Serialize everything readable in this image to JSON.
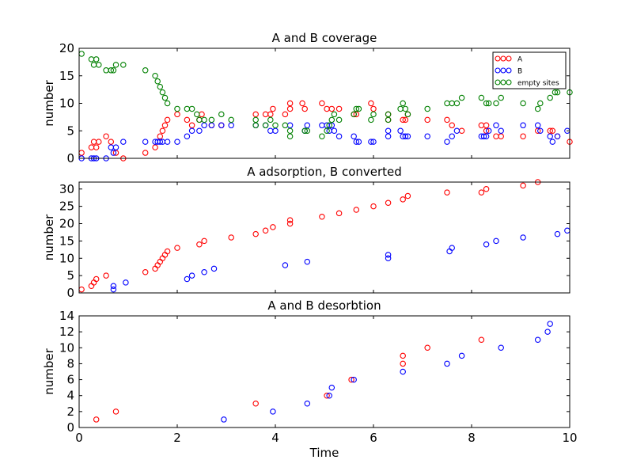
{
  "chart_data": [
    {
      "type": "scatter",
      "title": "A and B coverage",
      "xlabel": "",
      "ylabel": "number",
      "xlim": [
        0,
        10
      ],
      "ylim": [
        0,
        20
      ],
      "xticks": [],
      "yticks": [
        0,
        5,
        10,
        15,
        20
      ],
      "legend": {
        "placement": "top-right"
      },
      "series": [
        {
          "name": "A",
          "color": "#ff0000",
          "points": [
            [
              0.05,
              1
            ],
            [
              0.25,
              2
            ],
            [
              0.3,
              3
            ],
            [
              0.35,
              2
            ],
            [
              0.4,
              3
            ],
            [
              0.55,
              4
            ],
            [
              0.65,
              3
            ],
            [
              0.75,
              1
            ],
            [
              0.9,
              0
            ],
            [
              1.35,
              1
            ],
            [
              1.55,
              2
            ],
            [
              1.65,
              4
            ],
            [
              1.7,
              5
            ],
            [
              1.75,
              6
            ],
            [
              1.8,
              7
            ],
            [
              2.0,
              8
            ],
            [
              2.2,
              7
            ],
            [
              2.3,
              6
            ],
            [
              2.45,
              7
            ],
            [
              2.5,
              8
            ],
            [
              2.7,
              6
            ],
            [
              2.9,
              6
            ],
            [
              3.6,
              8
            ],
            [
              3.8,
              8
            ],
            [
              3.9,
              8
            ],
            [
              3.95,
              9
            ],
            [
              4.2,
              8
            ],
            [
              4.3,
              10
            ],
            [
              4.3,
              9
            ],
            [
              4.55,
              10
            ],
            [
              4.6,
              9
            ],
            [
              4.95,
              10
            ],
            [
              5.05,
              9
            ],
            [
              5.15,
              9
            ],
            [
              5.3,
              9
            ],
            [
              5.6,
              8
            ],
            [
              5.65,
              8
            ],
            [
              5.95,
              10
            ],
            [
              6.0,
              9
            ],
            [
              6.3,
              8
            ],
            [
              6.3,
              7
            ],
            [
              6.6,
              7
            ],
            [
              6.65,
              7
            ],
            [
              6.7,
              8
            ],
            [
              7.1,
              7
            ],
            [
              7.5,
              7
            ],
            [
              7.6,
              6
            ],
            [
              7.8,
              5
            ],
            [
              8.2,
              6
            ],
            [
              8.3,
              5
            ],
            [
              8.3,
              6
            ],
            [
              8.5,
              4
            ],
            [
              8.6,
              4
            ],
            [
              9.05,
              4
            ],
            [
              9.35,
              5
            ],
            [
              9.6,
              5
            ],
            [
              9.65,
              5
            ],
            [
              9.75,
              4
            ],
            [
              10.0,
              3
            ]
          ]
        },
        {
          "name": "B",
          "color": "#0000ff",
          "points": [
            [
              0.05,
              0
            ],
            [
              0.25,
              0
            ],
            [
              0.3,
              0
            ],
            [
              0.35,
              0
            ],
            [
              0.55,
              0
            ],
            [
              0.65,
              2
            ],
            [
              0.7,
              1
            ],
            [
              0.75,
              2
            ],
            [
              0.9,
              3
            ],
            [
              1.35,
              3
            ],
            [
              1.55,
              3
            ],
            [
              1.6,
              3
            ],
            [
              1.65,
              3
            ],
            [
              1.7,
              3
            ],
            [
              1.8,
              3
            ],
            [
              2.0,
              3
            ],
            [
              2.2,
              4
            ],
            [
              2.3,
              5
            ],
            [
              2.45,
              5
            ],
            [
              2.55,
              6
            ],
            [
              2.7,
              6
            ],
            [
              2.9,
              6
            ],
            [
              3.1,
              6
            ],
            [
              3.6,
              6
            ],
            [
              3.8,
              6
            ],
            [
              3.9,
              5
            ],
            [
              4.0,
              5
            ],
            [
              4.3,
              6
            ],
            [
              4.6,
              5
            ],
            [
              4.65,
              6
            ],
            [
              4.95,
              6
            ],
            [
              5.05,
              6
            ],
            [
              5.1,
              5
            ],
            [
              5.15,
              6
            ],
            [
              5.2,
              5
            ],
            [
              5.3,
              4
            ],
            [
              5.6,
              4
            ],
            [
              5.65,
              3
            ],
            [
              5.7,
              3
            ],
            [
              5.95,
              3
            ],
            [
              6.0,
              3
            ],
            [
              6.3,
              5
            ],
            [
              6.3,
              4
            ],
            [
              6.55,
              5
            ],
            [
              6.6,
              4
            ],
            [
              6.65,
              4
            ],
            [
              6.7,
              4
            ],
            [
              7.1,
              4
            ],
            [
              7.5,
              3
            ],
            [
              7.6,
              4
            ],
            [
              7.7,
              5
            ],
            [
              8.2,
              4
            ],
            [
              8.25,
              4
            ],
            [
              8.3,
              4
            ],
            [
              8.35,
              5
            ],
            [
              8.5,
              6
            ],
            [
              8.6,
              5
            ],
            [
              9.05,
              6
            ],
            [
              9.35,
              6
            ],
            [
              9.4,
              5
            ],
            [
              9.6,
              4
            ],
            [
              9.65,
              3
            ],
            [
              9.75,
              4
            ],
            [
              9.95,
              5
            ]
          ]
        },
        {
          "name": "empty sites",
          "color": "#008000",
          "points": [
            [
              0.05,
              19
            ],
            [
              0.25,
              18
            ],
            [
              0.3,
              17
            ],
            [
              0.35,
              18
            ],
            [
              0.4,
              17
            ],
            [
              0.55,
              16
            ],
            [
              0.65,
              16
            ],
            [
              0.7,
              16
            ],
            [
              0.75,
              17
            ],
            [
              0.9,
              17
            ],
            [
              1.35,
              16
            ],
            [
              1.55,
              15
            ],
            [
              1.6,
              14
            ],
            [
              1.65,
              13
            ],
            [
              1.7,
              12
            ],
            [
              1.75,
              11
            ],
            [
              1.8,
              10
            ],
            [
              2.0,
              9
            ],
            [
              2.2,
              9
            ],
            [
              2.3,
              9
            ],
            [
              2.4,
              8
            ],
            [
              2.45,
              7
            ],
            [
              2.55,
              7
            ],
            [
              2.7,
              7
            ],
            [
              2.9,
              8
            ],
            [
              3.1,
              7
            ],
            [
              3.6,
              7
            ],
            [
              3.6,
              6
            ],
            [
              3.8,
              6
            ],
            [
              3.9,
              7
            ],
            [
              4.0,
              6
            ],
            [
              4.2,
              6
            ],
            [
              4.3,
              5
            ],
            [
              4.3,
              4
            ],
            [
              4.6,
              5
            ],
            [
              4.65,
              5
            ],
            [
              4.95,
              4
            ],
            [
              5.05,
              5
            ],
            [
              5.1,
              6
            ],
            [
              5.15,
              7
            ],
            [
              5.2,
              8
            ],
            [
              5.3,
              7
            ],
            [
              5.6,
              8
            ],
            [
              5.65,
              9
            ],
            [
              5.7,
              9
            ],
            [
              5.95,
              7
            ],
            [
              6.0,
              8
            ],
            [
              6.3,
              8
            ],
            [
              6.3,
              7
            ],
            [
              6.55,
              9
            ],
            [
              6.6,
              10
            ],
            [
              6.65,
              9
            ],
            [
              6.7,
              8
            ],
            [
              7.1,
              9
            ],
            [
              7.5,
              10
            ],
            [
              7.6,
              10
            ],
            [
              7.7,
              10
            ],
            [
              7.8,
              11
            ],
            [
              8.2,
              11
            ],
            [
              8.3,
              10
            ],
            [
              8.35,
              10
            ],
            [
              8.5,
              10
            ],
            [
              8.6,
              11
            ],
            [
              9.05,
              10
            ],
            [
              9.35,
              9
            ],
            [
              9.4,
              10
            ],
            [
              9.6,
              11
            ],
            [
              9.7,
              12
            ],
            [
              9.75,
              12
            ],
            [
              10.0,
              12
            ]
          ]
        }
      ]
    },
    {
      "type": "scatter",
      "title": "A adsorption, B converted",
      "xlabel": "",
      "ylabel": "number",
      "xlim": [
        0,
        10
      ],
      "ylim": [
        0,
        32
      ],
      "xticks": [],
      "yticks": [
        0,
        5,
        10,
        15,
        20,
        25,
        30
      ],
      "series": [
        {
          "color": "#ff0000",
          "points": [
            [
              0.05,
              1
            ],
            [
              0.25,
              2
            ],
            [
              0.3,
              3
            ],
            [
              0.35,
              4
            ],
            [
              0.55,
              5
            ],
            [
              1.35,
              6
            ],
            [
              1.55,
              7
            ],
            [
              1.6,
              8
            ],
            [
              1.65,
              9
            ],
            [
              1.7,
              10
            ],
            [
              1.75,
              11
            ],
            [
              1.8,
              12
            ],
            [
              2.0,
              13
            ],
            [
              2.45,
              14
            ],
            [
              2.55,
              15
            ],
            [
              3.1,
              16
            ],
            [
              3.6,
              17
            ],
            [
              3.8,
              18
            ],
            [
              3.95,
              19
            ],
            [
              4.3,
              20
            ],
            [
              4.3,
              21
            ],
            [
              4.95,
              22
            ],
            [
              5.3,
              23
            ],
            [
              5.65,
              24
            ],
            [
              6.0,
              25
            ],
            [
              6.3,
              26
            ],
            [
              6.6,
              27
            ],
            [
              6.7,
              28
            ],
            [
              7.5,
              29
            ],
            [
              8.2,
              29
            ],
            [
              8.3,
              30
            ],
            [
              9.05,
              31
            ],
            [
              9.35,
              32
            ]
          ]
        },
        {
          "color": "#0000ff",
          "points": [
            [
              0.7,
              1
            ],
            [
              0.7,
              2
            ],
            [
              0.95,
              3
            ],
            [
              2.2,
              4
            ],
            [
              2.3,
              5
            ],
            [
              2.55,
              6
            ],
            [
              2.75,
              7
            ],
            [
              4.2,
              8
            ],
            [
              4.65,
              9
            ],
            [
              6.3,
              10
            ],
            [
              6.3,
              11
            ],
            [
              7.55,
              12
            ],
            [
              7.6,
              13
            ],
            [
              8.3,
              14
            ],
            [
              8.5,
              15
            ],
            [
              9.05,
              16
            ],
            [
              9.75,
              17
            ],
            [
              9.95,
              18
            ]
          ]
        }
      ]
    },
    {
      "type": "scatter",
      "title": "A and B desorbtion",
      "xlabel": "Time",
      "ylabel": "number",
      "xlim": [
        0,
        10
      ],
      "ylim": [
        0,
        14
      ],
      "xticks": [
        0,
        2,
        4,
        6,
        8,
        10
      ],
      "yticks": [
        0,
        2,
        4,
        6,
        8,
        10,
        12,
        14
      ],
      "series": [
        {
          "color": "#ff0000",
          "points": [
            [
              0.35,
              1
            ],
            [
              0.75,
              2
            ],
            [
              3.6,
              3
            ],
            [
              5.05,
              4
            ],
            [
              5.55,
              6
            ],
            [
              6.6,
              8
            ],
            [
              6.6,
              9
            ],
            [
              7.1,
              10
            ],
            [
              8.2,
              11
            ]
          ]
        },
        {
          "color": "#0000ff",
          "points": [
            [
              2.95,
              1
            ],
            [
              3.95,
              2
            ],
            [
              4.65,
              3
            ],
            [
              5.1,
              4
            ],
            [
              5.15,
              5
            ],
            [
              5.6,
              6
            ],
            [
              6.6,
              7
            ],
            [
              7.5,
              8
            ],
            [
              7.8,
              9
            ],
            [
              8.6,
              10
            ],
            [
              9.35,
              11
            ],
            [
              9.55,
              12
            ],
            [
              9.6,
              13
            ]
          ]
        }
      ]
    }
  ]
}
